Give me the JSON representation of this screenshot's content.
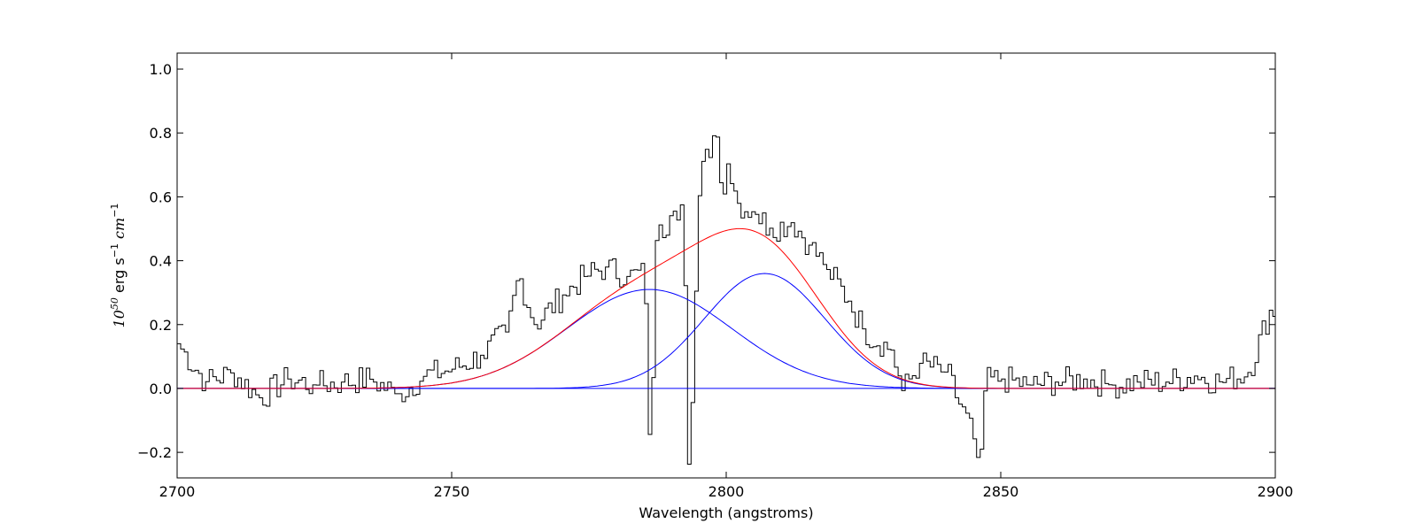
{
  "chart_data": {
    "type": "line",
    "xlabel": "Wavelength (angstroms)",
    "ylabel": {
      "base": "10",
      "exponent": "50",
      "units": "erg s",
      "s_exponent": "−1",
      "cm": "cm",
      "cm_exponent": "−1"
    },
    "xlim": [
      2700,
      2900
    ],
    "ylim": [
      -0.28,
      1.05
    ],
    "xticks": [
      2700,
      2750,
      2800,
      2850,
      2900
    ],
    "xtick_labels": [
      "2700",
      "2750",
      "2800",
      "2850",
      "2900"
    ],
    "yticks": [
      -0.2,
      0.0,
      0.2,
      0.4,
      0.6,
      0.8,
      1.0
    ],
    "ytick_labels": [
      "−0.2",
      "0.0",
      "0.2",
      "0.4",
      "0.6",
      "0.8",
      "1.0"
    ],
    "grid": false,
    "legend": "none",
    "colors": {
      "spectrum": "#000000",
      "components": "#0000ff",
      "total_fit": "#ff0000"
    },
    "spectrum": {
      "style": "steps",
      "x": [
        2700,
        2705,
        2710,
        2715,
        2720,
        2725,
        2730,
        2735,
        2740,
        2745,
        2750,
        2755,
        2760,
        2762,
        2765,
        2770,
        2774,
        2778,
        2782,
        2785,
        2786,
        2787,
        2790,
        2792,
        2793,
        2795,
        2798,
        2799,
        2800,
        2802,
        2805,
        2808,
        2812,
        2815,
        2818,
        2822,
        2825,
        2830,
        2832,
        2835,
        2840,
        2845,
        2846,
        2847,
        2850,
        2855,
        2860,
        2865,
        2870,
        2875,
        2880,
        2885,
        2890,
        2895,
        2899,
        2900
      ],
      "y": [
        0.14,
        0.02,
        0.05,
        -0.03,
        0.03,
        0.01,
        0.02,
        0.03,
        -0.02,
        0.04,
        0.06,
        0.1,
        0.18,
        0.36,
        0.2,
        0.29,
        0.35,
        0.38,
        0.35,
        0.36,
        -0.27,
        0.46,
        0.55,
        0.58,
        -0.28,
        0.65,
        0.82,
        0.6,
        0.71,
        0.58,
        0.55,
        0.5,
        0.52,
        0.45,
        0.38,
        0.28,
        0.18,
        0.12,
        -0.01,
        0.08,
        0.05,
        -0.16,
        -0.26,
        0.02,
        0.03,
        0.01,
        0.02,
        0.03,
        0.01,
        0.02,
        0.02,
        0.04,
        0.02,
        0.05,
        0.25,
        0.2
      ]
    },
    "series": [
      {
        "role": "component",
        "shape": "gaussian",
        "center": 2786,
        "amplitude": 0.31,
        "sigma": 15
      },
      {
        "role": "component",
        "shape": "gaussian",
        "center": 2807,
        "amplitude": 0.36,
        "sigma": 11
      },
      {
        "role": "component",
        "shape": "constant",
        "value": 0.0
      },
      {
        "role": "total_fit",
        "shape": "sum of components"
      }
    ]
  }
}
